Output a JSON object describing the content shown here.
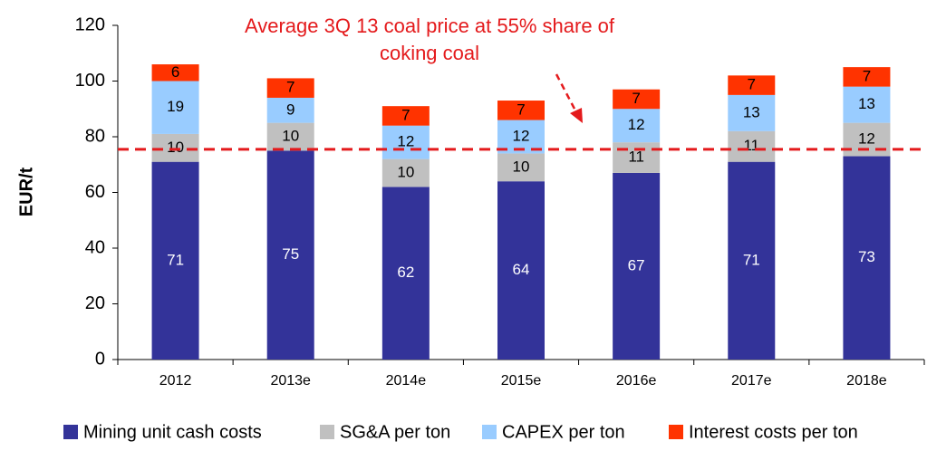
{
  "chart_data": {
    "type": "bar",
    "stacked": true,
    "ylabel": "EUR/t",
    "ylim": [
      0,
      120
    ],
    "yticks": [
      0,
      20,
      40,
      60,
      80,
      100,
      120
    ],
    "categories": [
      "2012",
      "2013e",
      "2014e",
      "2015e",
      "2016e",
      "2017e",
      "2018e"
    ],
    "series": [
      {
        "name": "Mining unit cash costs",
        "color": "#333399",
        "label_color": "#ffffff",
        "values": [
          71,
          75,
          62,
          64,
          67,
          71,
          73
        ]
      },
      {
        "name": "SG&A per ton",
        "color": "#c0c0c0",
        "label_color": "#000000",
        "values": [
          10,
          10,
          10,
          10,
          11,
          11,
          12
        ]
      },
      {
        "name": "CAPEX per ton",
        "color": "#99ccff",
        "label_color": "#000000",
        "values": [
          19,
          9,
          12,
          12,
          12,
          13,
          13
        ]
      },
      {
        "name": "Interest costs per ton",
        "color": "#ff3300",
        "label_color": "#000000",
        "values": [
          6,
          7,
          7,
          7,
          7,
          7,
          7
        ]
      }
    ],
    "reference_line": {
      "value": 75.5,
      "color": "#e41a1c",
      "style": "dashed"
    },
    "annotation": {
      "lines": [
        "Average 3Q 13 coal price at 55% share of",
        "coking coal"
      ],
      "color": "#e41a1c"
    },
    "legend": {
      "position": "bottom"
    },
    "grid": false
  }
}
